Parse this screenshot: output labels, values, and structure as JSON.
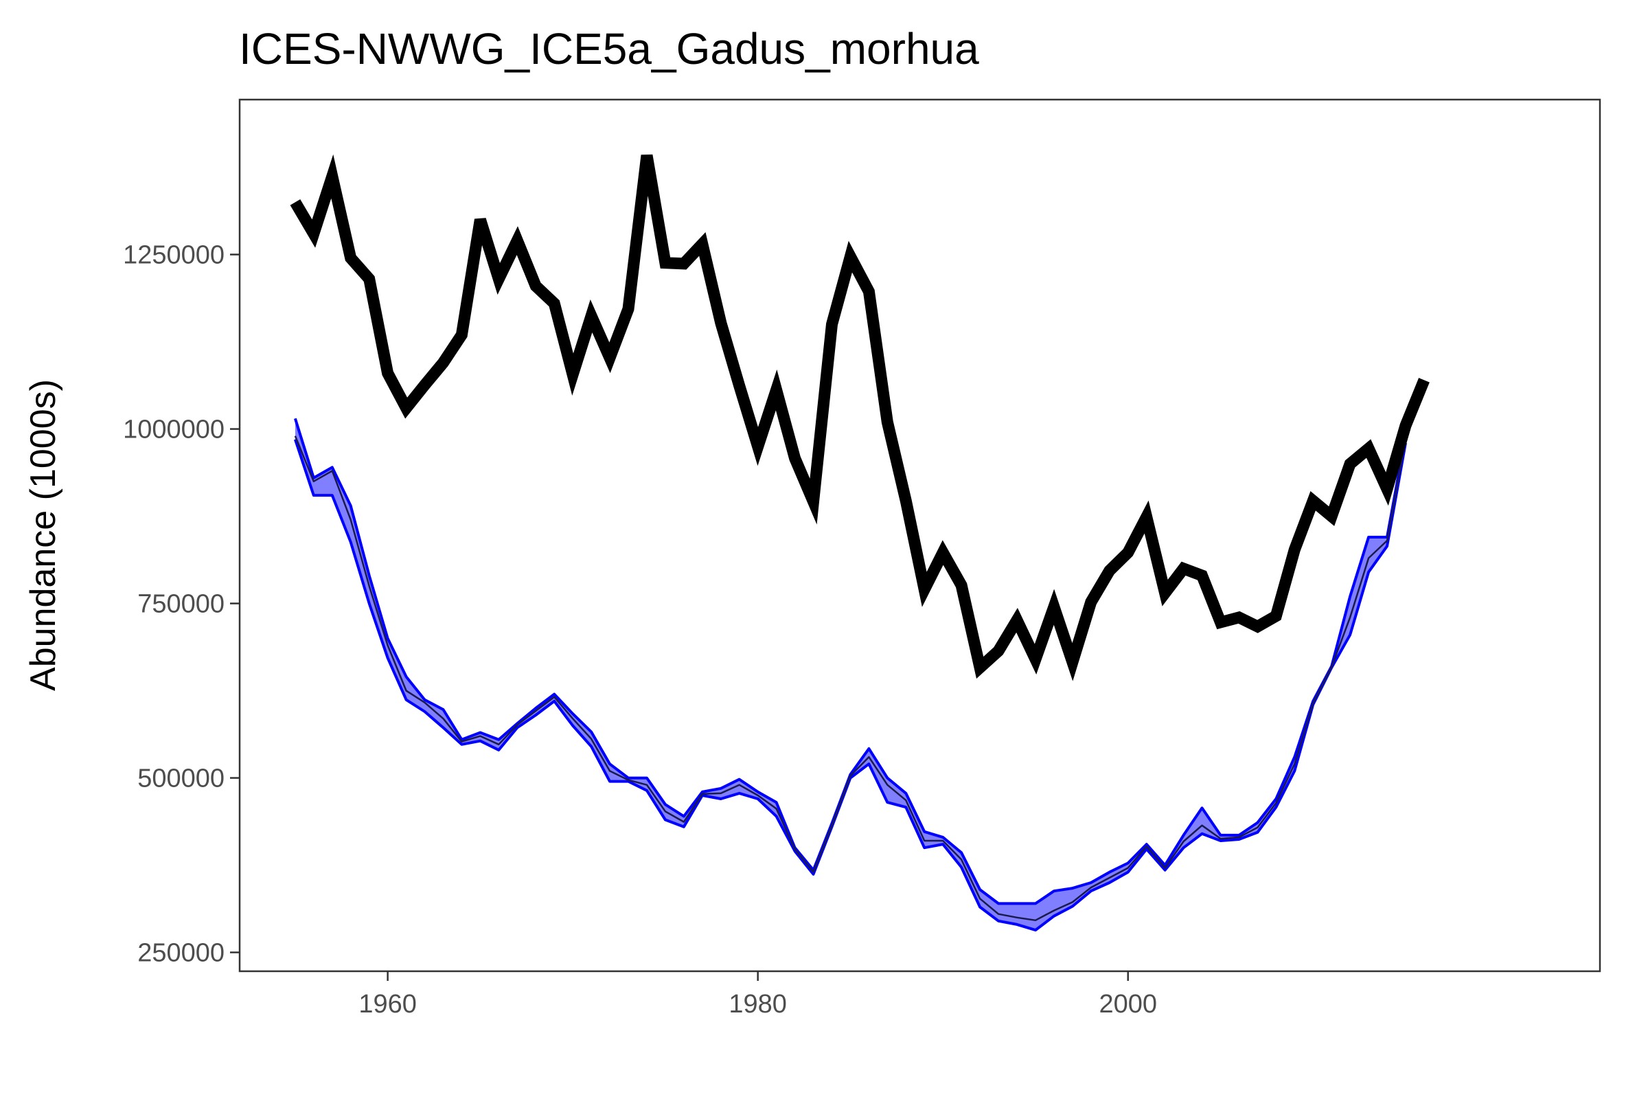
{
  "chart_data": {
    "type": "line",
    "title": "ICES-NWWG_ICE5a_Gadus_morhua",
    "xlabel": "",
    "ylabel": "Abundance (1000s)",
    "xlim": [
      1952,
      2025.5
    ],
    "ylim": [
      223000,
      1472000
    ],
    "x_ticks": [
      1960,
      1980,
      2000
    ],
    "y_ticks": [
      250000,
      500000,
      750000,
      1000000,
      1250000
    ],
    "x_tick_labels": [
      "1960",
      "1980",
      "2000"
    ],
    "y_tick_labels": [
      "250000",
      "500000",
      "750000",
      "1000000",
      "1250000"
    ],
    "grid": false,
    "legend": "none",
    "colors": {
      "observed": "#000000",
      "band_stroke": "#0000ff",
      "band_fill": "#0000ff",
      "model_line": "#1a1a4d"
    },
    "series": [
      {
        "key": "observed",
        "x": [
          1955,
          1956,
          1957,
          1958,
          1959,
          1960,
          1961,
          1962,
          1963,
          1964,
          1965,
          1966,
          1967,
          1968,
          1969,
          1970,
          1971,
          1972,
          1973,
          1974,
          1975,
          1976,
          1977,
          1978,
          1979,
          1980,
          1981,
          1982,
          1983,
          1984,
          1985,
          1986,
          1987,
          1988,
          1989,
          1990,
          1991,
          1992,
          1993,
          1994,
          1995,
          1996,
          1997,
          1998,
          1999,
          2000,
          2001,
          2002,
          2003,
          2004,
          2005,
          2006,
          2007,
          2008,
          2009,
          2010,
          2011,
          2012,
          2013,
          2014,
          2015,
          2016
        ],
        "values": [
          1325000,
          1280000,
          1362000,
          1245000,
          1215000,
          1080000,
          1030000,
          1063000,
          1095000,
          1135000,
          1300000,
          1215000,
          1270000,
          1205000,
          1180000,
          1078000,
          1162000,
          1102000,
          1172000,
          1392000,
          1238000,
          1237000,
          1265000,
          1152000,
          1062000,
          975000,
          1056000,
          958000,
          896000,
          1150000,
          1247000,
          1197000,
          1010000,
          897000,
          770000,
          823000,
          776000,
          658000,
          682000,
          726000,
          670000,
          745000,
          666000,
          752000,
          797000,
          823000,
          874000,
          765000,
          800000,
          790000,
          723000,
          730000,
          717000,
          732000,
          827000,
          897000,
          875000,
          950000,
          972000,
          914000,
          1005000,
          1070000
        ]
      },
      {
        "key": "model_upper",
        "x": [
          1955,
          1956,
          1957,
          1958,
          1959,
          1960,
          1961,
          1962,
          1963,
          1964,
          1965,
          1966,
          1967,
          1968,
          1969,
          1970,
          1971,
          1972,
          1973,
          1974,
          1975,
          1976,
          1977,
          1978,
          1979,
          1980,
          1981,
          1982,
          1983,
          1984,
          1985,
          1986,
          1987,
          1988,
          1989,
          1990,
          1991,
          1992,
          1993,
          1994,
          1995,
          1996,
          1997,
          1998,
          1999,
          2000,
          2001,
          2002,
          2003,
          2004,
          2005,
          2006,
          2007,
          2008,
          2009,
          2010,
          2011,
          2012,
          2013,
          2014,
          2015
        ],
        "values": [
          1015000,
          930000,
          945000,
          890000,
          790000,
          700000,
          645000,
          612000,
          598000,
          555000,
          565000,
          555000,
          578000,
          600000,
          620000,
          592000,
          566000,
          520000,
          500000,
          500000,
          462000,
          445000,
          480000,
          485000,
          498000,
          480000,
          465000,
          400000,
          368000,
          435000,
          505000,
          542000,
          500000,
          478000,
          423000,
          415000,
          393000,
          340000,
          320000,
          320000,
          320000,
          338000,
          342000,
          350000,
          365000,
          378000,
          405000,
          375000,
          418000,
          457000,
          418000,
          418000,
          436000,
          470000,
          530000,
          610000,
          660000,
          760000,
          845000,
          845000,
          990000
        ]
      },
      {
        "key": "model_lower",
        "x": [
          1955,
          1956,
          1957,
          1958,
          1959,
          1960,
          1961,
          1962,
          1963,
          1964,
          1965,
          1966,
          1967,
          1968,
          1969,
          1970,
          1971,
          1972,
          1973,
          1974,
          1975,
          1976,
          1977,
          1978,
          1979,
          1980,
          1981,
          1982,
          1983,
          1984,
          1985,
          1986,
          1987,
          1988,
          1989,
          1990,
          1991,
          1992,
          1993,
          1994,
          1995,
          1996,
          1997,
          1998,
          1999,
          2000,
          2001,
          2002,
          2003,
          2004,
          2005,
          2006,
          2007,
          2008,
          2009,
          2010,
          2011,
          2012,
          2013,
          2014,
          2015
        ],
        "values": [
          985000,
          905000,
          905000,
          838000,
          750000,
          672000,
          612000,
          595000,
          572000,
          548000,
          553000,
          540000,
          572000,
          590000,
          610000,
          575000,
          545000,
          495000,
          495000,
          482000,
          440000,
          430000,
          475000,
          470000,
          478000,
          470000,
          445000,
          395000,
          362000,
          430000,
          500000,
          520000,
          465000,
          458000,
          400000,
          405000,
          372000,
          315000,
          295000,
          290000,
          282000,
          302000,
          316000,
          338000,
          350000,
          365000,
          398000,
          368000,
          400000,
          420000,
          410000,
          412000,
          422000,
          458000,
          510000,
          605000,
          658000,
          705000,
          795000,
          832000,
          980000
        ]
      },
      {
        "key": "model_mid",
        "x": [
          1955,
          1956,
          1957,
          1958,
          1959,
          1960,
          1961,
          1962,
          1963,
          1964,
          1965,
          1966,
          1967,
          1968,
          1969,
          1970,
          1971,
          1972,
          1973,
          1974,
          1975,
          1976,
          1977,
          1978,
          1979,
          1980,
          1981,
          1982,
          1983,
          1984,
          1985,
          1986,
          1987,
          1988,
          1989,
          1990,
          1991,
          1992,
          1993,
          1994,
          1995,
          1996,
          1997,
          1998,
          1999,
          2000,
          2001,
          2002,
          2003,
          2004,
          2005,
          2006,
          2007,
          2008,
          2009,
          2010,
          2011,
          2012,
          2013,
          2014,
          2015
        ],
        "values": [
          990000,
          925000,
          940000,
          870000,
          775000,
          690000,
          625000,
          608000,
          585000,
          552000,
          560000,
          548000,
          576000,
          596000,
          616000,
          585000,
          556000,
          510000,
          497000,
          490000,
          452000,
          437000,
          477000,
          478000,
          490000,
          475000,
          456000,
          398000,
          365000,
          432000,
          503000,
          530000,
          490000,
          468000,
          410000,
          410000,
          383000,
          327000,
          305000,
          300000,
          296000,
          310000,
          322000,
          343000,
          357000,
          371000,
          402000,
          371000,
          409000,
          432000,
          413000,
          415000,
          429000,
          464000,
          520000,
          607000,
          659000,
          730000,
          815000,
          840000,
          985000
        ]
      }
    ]
  }
}
